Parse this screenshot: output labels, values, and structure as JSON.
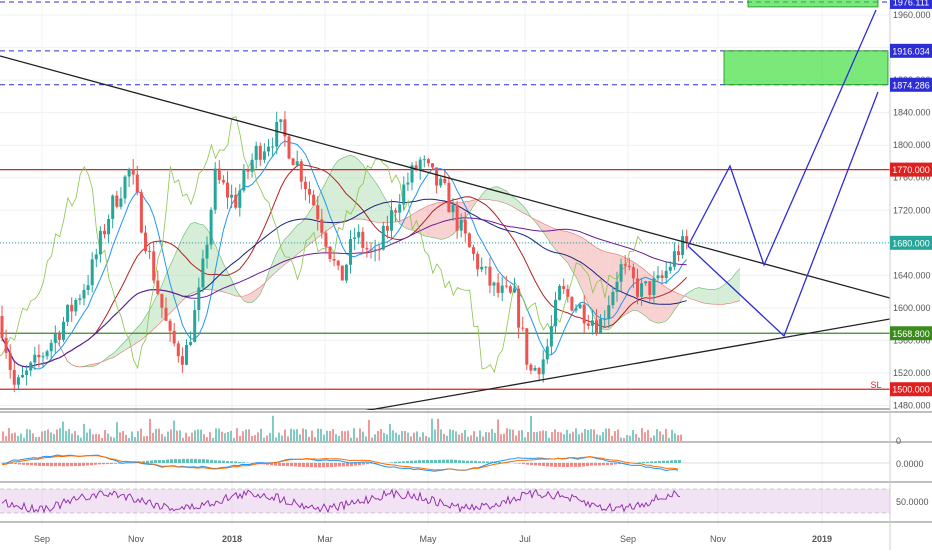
{
  "chart_data": {
    "type": "candlestick",
    "title": "",
    "xlabel": "",
    "ylabel": "",
    "ylim": [
      1465,
      1990
    ],
    "x_ticks": [
      "Sep",
      "Nov",
      "2018",
      "Mar",
      "May",
      "Jul",
      "Sep",
      "Nov",
      "2019"
    ],
    "y_ticks": [
      1480,
      1520,
      1560,
      1600,
      1640,
      1680,
      1720,
      1760,
      1800,
      1840,
      1880,
      1920,
      1960
    ],
    "y_tick_labels": [
      "1480.000",
      "1520.000",
      "1560.000",
      "1600.000",
      "1640.000",
      "1680.000",
      "1720.000",
      "1760.000",
      "1800.000",
      "1840.000",
      "1880.000",
      "1920.000",
      "1960.000"
    ],
    "horizontal_levels": [
      {
        "value": 1976.111,
        "label": "1976.111",
        "color": "#2d2dd6",
        "style": "dashed"
      },
      {
        "value": 1916.034,
        "label": "1916.034",
        "color": "#2d2dd6",
        "style": "dashed"
      },
      {
        "value": 1874.286,
        "label": "1874.286",
        "color": "#2d2dd6",
        "style": "dashed"
      },
      {
        "value": 1770.0,
        "label": "1770.000",
        "color": "#e01f1f",
        "style": "solid"
      },
      {
        "value": 1680.0,
        "label": "1680.000",
        "color": "#26a69a",
        "style": "dotted"
      },
      {
        "value": 1568.8,
        "label": "1568.800",
        "color": "#3a8a1c",
        "style": "solid"
      },
      {
        "value": 1500.0,
        "label": "1500.000",
        "color": "#e01f1f",
        "style": "solid"
      }
    ],
    "annotations": [
      {
        "text": "SL"
      }
    ],
    "target_zones": [
      {
        "y_from": 1970,
        "y_to": 1982
      },
      {
        "y_from": 1874.286,
        "y_to": 1916.034
      }
    ],
    "trendlines": [
      {
        "name": "descending resistance",
        "points": [
          [
            "2017-08",
            1920
          ],
          [
            "2018-10-30",
            1615
          ]
        ]
      },
      {
        "name": "ascending support",
        "points": [
          [
            "2018-03",
            1478
          ],
          [
            "2018-12-31",
            1590
          ]
        ]
      }
    ],
    "projection_paths": [
      {
        "points": [
          [
            1664,
            1683
          ],
          [
            1707,
            1788
          ],
          [
            1732,
            1650
          ],
          [
            1832,
            1976.111
          ]
        ]
      },
      {
        "points": [
          [
            1664,
            1683
          ],
          [
            1745,
            1568.8
          ],
          [
            1828,
            1874.286
          ]
        ]
      }
    ],
    "colors": {
      "up": "#26a69a",
      "down": "#ef5350",
      "projection": "#2d2dd6",
      "trendline": "#222222",
      "zone": "#33dd33"
    },
    "indicator_panes": [
      {
        "name": "volume",
        "ticks": [
          "0"
        ]
      },
      {
        "name": "macd",
        "ticks": [
          "0.0000"
        ]
      },
      {
        "name": "rsi",
        "ticks": [
          "50.0000"
        ]
      }
    ]
  }
}
